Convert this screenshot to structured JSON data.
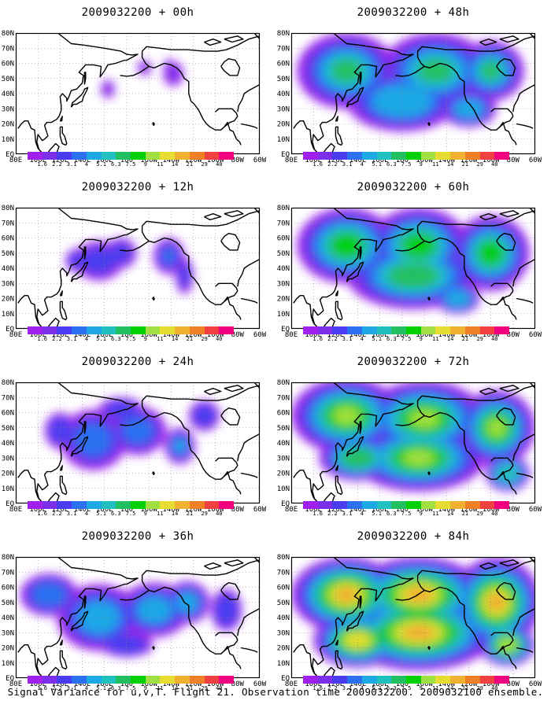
{
  "panels": [
    {
      "title": "2009032200 + 00h",
      "intensity": 0.05
    },
    {
      "title": "2009032200 + 12h",
      "intensity": 0.18
    },
    {
      "title": "2009032200 + 24h",
      "intensity": 0.3
    },
    {
      "title": "2009032200 + 36h",
      "intensity": 0.42
    },
    {
      "title": "2009032200 + 48h",
      "intensity": 0.55
    },
    {
      "title": "2009032200 + 60h",
      "intensity": 0.68
    },
    {
      "title": "2009032200 + 72h",
      "intensity": 0.82
    },
    {
      "title": "2009032200 + 84h",
      "intensity": 1.0
    }
  ],
  "lat_labels": [
    "80N",
    "70N",
    "60N",
    "50N",
    "40N",
    "30N",
    "20N",
    "10N",
    "EQ"
  ],
  "lon_labels": [
    "80E",
    "100E",
    "120E",
    "140E",
    "160E",
    "180",
    "160W",
    "140W",
    "120W",
    "100W",
    "80W",
    "60W"
  ],
  "colorbar": {
    "labels": [
      "1.6",
      "2.2",
      "3.1",
      "4",
      "5.1",
      "6.3",
      "7.5",
      "9",
      "11",
      "14",
      "21",
      "29",
      "40"
    ],
    "colors": [
      "#a020f0",
      "#7d2ee8",
      "#4a3cf0",
      "#2a70f0",
      "#1fa8e6",
      "#20c0c0",
      "#20c060",
      "#00d000",
      "#a0e040",
      "#e6dc32",
      "#f0b030",
      "#f08028",
      "#f04040",
      "#f00080"
    ]
  },
  "caption": "Signal Variance for u,v,T. Flight 21. Observation time 2009032200. 2009032100 ensemble."
}
